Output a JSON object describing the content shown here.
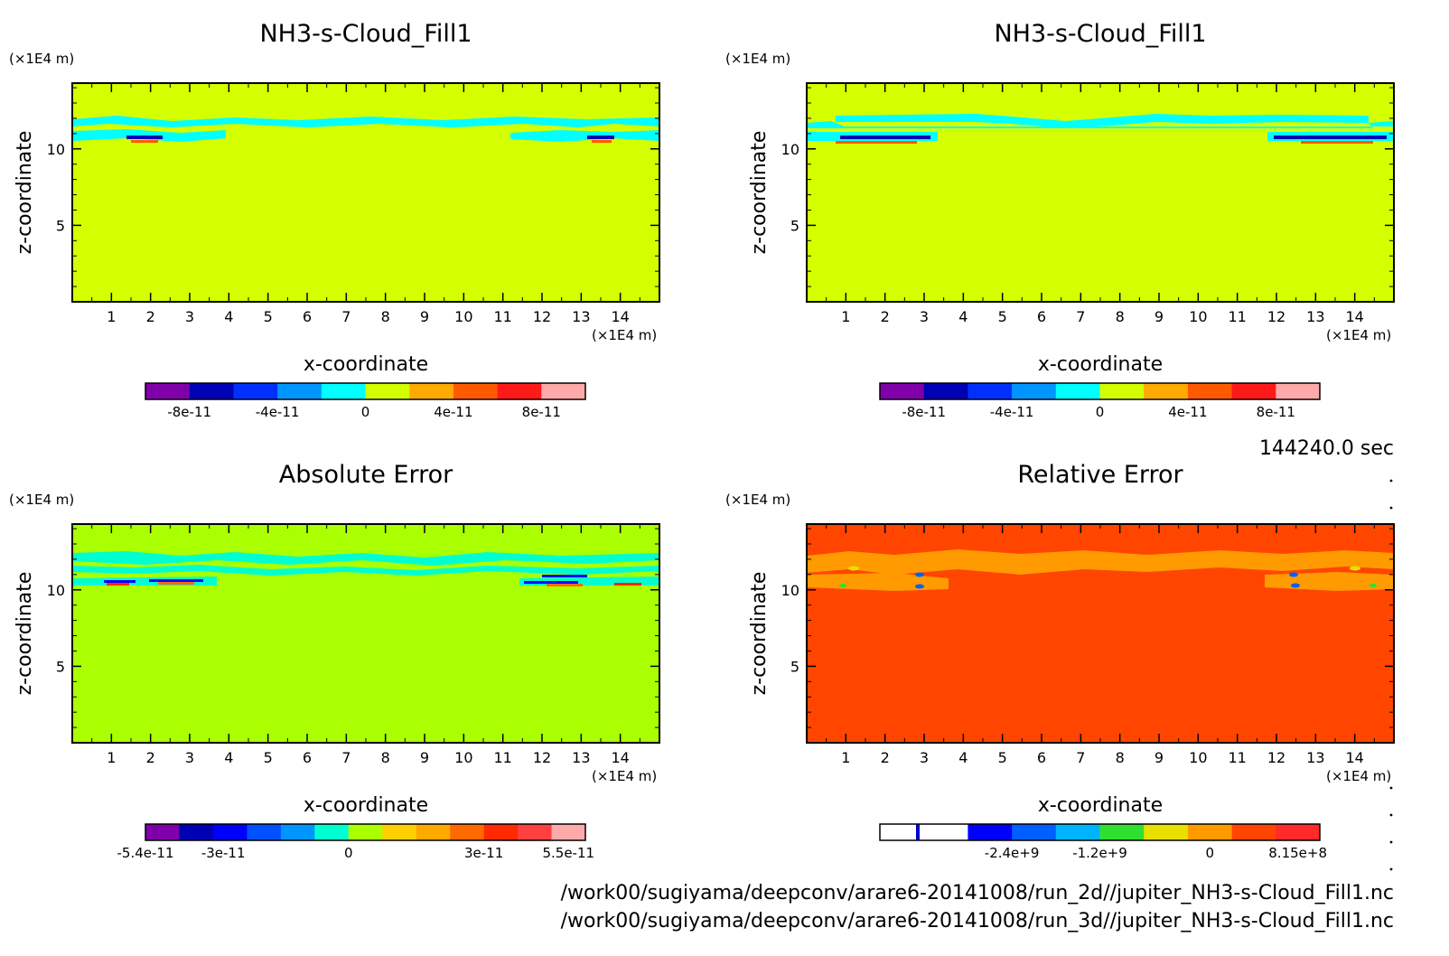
{
  "time_label": "144240.0 sec",
  "paths": [
    "/work00/sugiyama/deepconv/arare6-20141008/run_2d//jupiter_NH3-s-Cloud_Fill1.nc",
    "/work00/sugiyama/deepconv/arare6-20141008/run_3d//jupiter_NH3-s-Cloud_Fill1.nc"
  ],
  "chart_data": [
    {
      "type": "heatmap",
      "title": "NH3-s-Cloud_Fill1",
      "xlabel": "x-coordinate",
      "ylabel": "z-coordinate",
      "x_unit": "(×1E4 m)",
      "y_unit": "(×1E4 m)",
      "xlim": [
        0,
        15
      ],
      "ylim": [
        0,
        14.3
      ],
      "x_ticks": [
        "1",
        "2",
        "3",
        "4",
        "5",
        "6",
        "7",
        "8",
        "9",
        "10",
        "11",
        "12",
        "13",
        "14"
      ],
      "y_ticks": [
        "5",
        "10"
      ],
      "background_color": "#d4ff00",
      "colorbar": {
        "colors": [
          "#7f00aa",
          "#0000b4",
          "#0030ff",
          "#0096ff",
          "#00ffff",
          "#d4ff00",
          "#ffaa00",
          "#ff5a00",
          "#ff1a1a",
          "#ffaaaa"
        ],
        "labels": [
          "-8e-11",
          "-4e-11",
          "0",
          "4e-11",
          "8e-11"
        ]
      }
    },
    {
      "type": "heatmap",
      "title": "NH3-s-Cloud_Fill1",
      "xlabel": "x-coordinate",
      "ylabel": "z-coordinate",
      "x_unit": "(×1E4 m)",
      "y_unit": "(×1E4 m)",
      "xlim": [
        0,
        15
      ],
      "ylim": [
        0,
        14.3
      ],
      "x_ticks": [
        "1",
        "2",
        "3",
        "4",
        "5",
        "6",
        "7",
        "8",
        "9",
        "10",
        "11",
        "12",
        "13",
        "14"
      ],
      "y_ticks": [
        "5",
        "10"
      ],
      "background_color": "#d4ff00",
      "colorbar": {
        "colors": [
          "#7f00aa",
          "#0000b4",
          "#0030ff",
          "#0096ff",
          "#00ffff",
          "#d4ff00",
          "#ffaa00",
          "#ff5a00",
          "#ff1a1a",
          "#ffaaaa"
        ],
        "labels": [
          "-8e-11",
          "-4e-11",
          "0",
          "4e-11",
          "8e-11"
        ]
      }
    },
    {
      "type": "heatmap",
      "title": "Absolute Error",
      "xlabel": "x-coordinate",
      "ylabel": "z-coordinate",
      "x_unit": "(×1E4 m)",
      "y_unit": "(×1E4 m)",
      "xlim": [
        0,
        15
      ],
      "ylim": [
        0,
        14.3
      ],
      "x_ticks": [
        "1",
        "2",
        "3",
        "4",
        "5",
        "6",
        "7",
        "8",
        "9",
        "10",
        "11",
        "12",
        "13",
        "14"
      ],
      "y_ticks": [
        "5",
        "10"
      ],
      "background_color": "#aaff00",
      "colorbar": {
        "colors": [
          "#7f00aa",
          "#0000b4",
          "#0000ff",
          "#0050ff",
          "#0096ff",
          "#00ffd0",
          "#aaff00",
          "#ffd000",
          "#ffaa00",
          "#ff6a00",
          "#ff2a00",
          "#ff4040",
          "#ffaaaa"
        ],
        "labels": [
          "-5.4e-11",
          "-3e-11",
          "0",
          "3e-11",
          "5.5e-11"
        ]
      }
    },
    {
      "type": "heatmap",
      "title": "Relative Error",
      "xlabel": "x-coordinate",
      "ylabel": "z-coordinate",
      "x_unit": "(×1E4 m)",
      "y_unit": "(×1E4 m)",
      "xlim": [
        0,
        15
      ],
      "ylim": [
        0,
        14.3
      ],
      "x_ticks": [
        "1",
        "2",
        "3",
        "4",
        "5",
        "6",
        "7",
        "8",
        "9",
        "10",
        "11",
        "12",
        "13",
        "14"
      ],
      "y_ticks": [
        "5",
        "10"
      ],
      "background_color": "#ff4500",
      "colorbar": {
        "colors": [
          "#ffffff",
          "#ffffff",
          "#0000ff",
          "#0060ff",
          "#00b4ff",
          "#30e030",
          "#e8e000",
          "#ff9a00",
          "#ff4500",
          "#ff2a2a"
        ],
        "labels": [
          "-2.4e+9",
          "-1.2e+9",
          "0",
          "8.15e+8"
        ]
      }
    }
  ]
}
